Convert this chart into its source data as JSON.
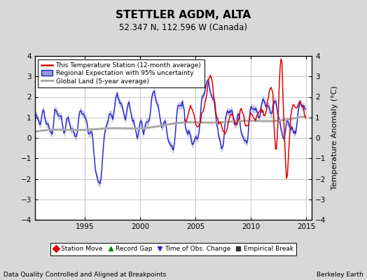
{
  "title": "STETTLER AGDM, ALTA",
  "subtitle": "52.347 N, 112.596 W (Canada)",
  "ylabel": "Temperature Anomaly (°C)",
  "xlabel_left": "Data Quality Controlled and Aligned at Breakpoints",
  "xlabel_right": "Berkeley Earth",
  "ylim": [
    -4,
    4
  ],
  "xlim": [
    1990.5,
    2015.5
  ],
  "xticks": [
    1995,
    2000,
    2005,
    2010,
    2015
  ],
  "yticks": [
    -4,
    -3,
    -2,
    -1,
    0,
    1,
    2,
    3,
    4
  ],
  "bg_color": "#d8d8d8",
  "plot_bg_color": "#ffffff",
  "grid_color": "#bbbbbb",
  "line_station_color": "#dd0000",
  "line_regional_color": "#2222cc",
  "line_regional_fill": "#9999dd",
  "line_global_color": "#aaaaaa",
  "legend1_entries": [
    "This Temperature Station (12-month average)",
    "Regional Expectation with 95% uncertainty",
    "Global Land (5-year average)"
  ],
  "legend2_entries": [
    "Station Move",
    "Record Gap",
    "Time of Obs. Change",
    "Empirical Break"
  ],
  "legend2_colors": [
    "#dd0000",
    "#008800",
    "#2222cc",
    "#333333"
  ],
  "legend2_markers": [
    "D",
    "^",
    "v",
    "s"
  ],
  "station_start_year": 2004.0,
  "title_fontsize": 11,
  "subtitle_fontsize": 8.5,
  "tick_fontsize": 7.5,
  "legend_fontsize": 6.5,
  "footer_fontsize": 6.5
}
